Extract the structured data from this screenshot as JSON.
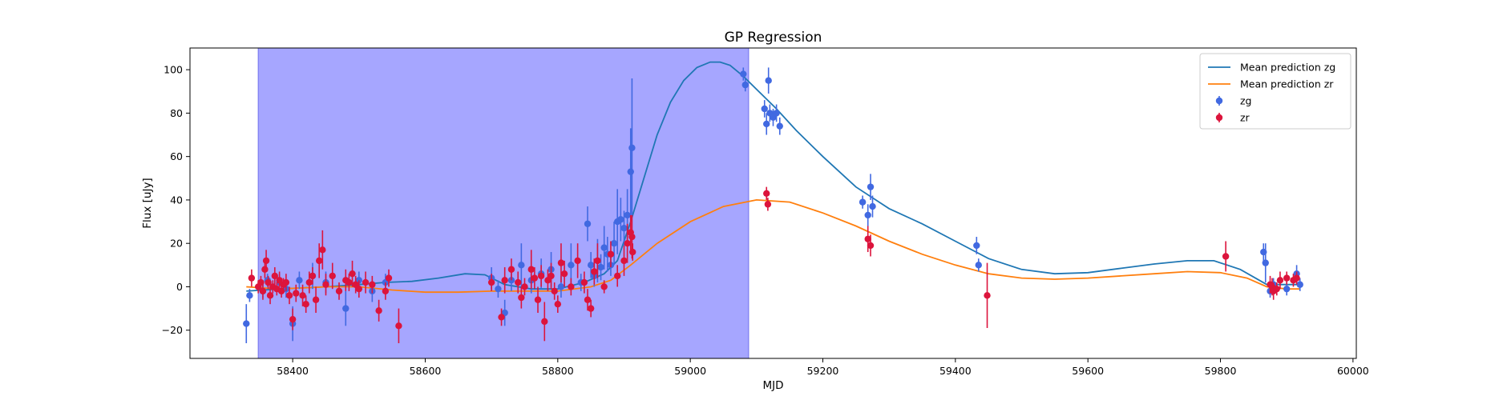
{
  "chart_data": {
    "type": "scatter",
    "title": "GP Regression",
    "xlabel": "MJD",
    "ylabel": "Flux [uJy]",
    "xlim": [
      58245,
      60005
    ],
    "ylim": [
      -33,
      110
    ],
    "x_ticks": [
      58400,
      58600,
      58800,
      59000,
      59200,
      59400,
      59600,
      59800,
      60000
    ],
    "y_ticks": [
      -20,
      0,
      20,
      40,
      60,
      80,
      100
    ],
    "grid": false,
    "legend_position": "top-right",
    "shaded_region": {
      "x_start": 58348,
      "x_end": 59088,
      "color": "#a6a6ff"
    },
    "series": [
      {
        "name": "Mean prediction zg",
        "kind": "line",
        "color": "#1f77b4",
        "x": [
          58330,
          58380,
          58450,
          58500,
          58540,
          58580,
          58620,
          58660,
          58690,
          58720,
          58760,
          58800,
          58840,
          58870,
          58890,
          58910,
          58930,
          58950,
          58970,
          58990,
          59010,
          59030,
          59045,
          59060,
          59080,
          59100,
          59130,
          59160,
          59200,
          59250,
          59300,
          59350,
          59400,
          59450,
          59500,
          59550,
          59600,
          59650,
          59700,
          59750,
          59790,
          59830,
          59870,
          59900,
          59920
        ],
        "y": [
          -2,
          -1,
          0,
          1,
          2,
          2.5,
          4,
          6,
          5.5,
          1,
          -1,
          -1,
          2,
          6,
          12,
          30,
          50,
          70,
          85,
          95,
          101,
          103.5,
          103.5,
          102,
          97,
          91,
          82,
          72,
          60,
          46,
          36,
          29,
          21,
          13,
          8,
          6,
          6.5,
          8.5,
          10.5,
          12,
          12,
          8,
          1,
          1,
          1
        ]
      },
      {
        "name": "Mean prediction zr",
        "kind": "line",
        "color": "#ff7f0e",
        "x": [
          58330,
          58380,
          58450,
          58500,
          58550,
          58600,
          58650,
          58700,
          58750,
          58800,
          58850,
          58880,
          58910,
          58950,
          59000,
          59050,
          59100,
          59150,
          59200,
          59250,
          59300,
          59350,
          59400,
          59450,
          59500,
          59550,
          59600,
          59650,
          59700,
          59750,
          59800,
          59840,
          59870,
          59900,
          59920
        ],
        "y": [
          0,
          -1,
          0,
          0,
          -1.5,
          -2.5,
          -2.5,
          -2,
          -2,
          -2,
          0,
          3,
          10,
          20,
          30,
          37,
          40,
          39,
          34,
          28,
          21,
          15,
          10,
          6,
          4,
          3.5,
          4,
          5,
          6,
          7,
          6.5,
          4,
          0,
          -1,
          -1
        ]
      },
      {
        "name": "zg",
        "kind": "errorbar",
        "color": "#4169e1",
        "x": [
          58330,
          58335,
          58355,
          58362,
          58380,
          58390,
          58400,
          58410,
          58430,
          58450,
          58480,
          58500,
          58520,
          58540,
          58700,
          58710,
          58720,
          58730,
          58745,
          58760,
          58775,
          58790,
          58805,
          58820,
          58835,
          58845,
          58850,
          58855,
          58860,
          58865,
          58870,
          58875,
          58880,
          58885,
          58890,
          58895,
          58900,
          58905,
          58910,
          58912,
          59080,
          59083,
          59112,
          59115,
          59118,
          59120,
          59125,
          59130,
          59135,
          59260,
          59268,
          59272,
          59275,
          59432,
          59435,
          59865,
          59868,
          59875,
          59880,
          59900,
          59915,
          59920
        ],
        "y": [
          -17,
          -4,
          -2,
          3,
          2,
          -1,
          -17,
          3,
          5,
          2,
          -10,
          3,
          -2,
          2,
          4,
          -1,
          -12,
          3,
          10,
          3,
          6,
          8,
          0,
          10,
          2,
          29,
          10,
          5,
          12,
          9,
          18,
          15,
          10,
          20,
          30,
          31,
          27,
          33,
          53,
          64,
          98,
          93,
          82,
          75,
          95,
          80,
          78,
          80,
          74,
          39,
          33,
          46,
          37,
          19,
          10,
          16,
          11,
          -2,
          1,
          -1,
          6,
          1
        ],
        "err": [
          9,
          3,
          3,
          3,
          4,
          4,
          8,
          4,
          6,
          5,
          8,
          4,
          5,
          4,
          5,
          4,
          6,
          5,
          10,
          6,
          7,
          8,
          5,
          10,
          4,
          8,
          6,
          5,
          10,
          6,
          10,
          8,
          5,
          10,
          15,
          10,
          8,
          12,
          20,
          32,
          3,
          3,
          4,
          5,
          6,
          4,
          4,
          4,
          4,
          3,
          5,
          6,
          5,
          4,
          3,
          4,
          9,
          3,
          3,
          3,
          4,
          3
        ]
      },
      {
        "name": "zr",
        "kind": "errorbar",
        "color": "#dc143c",
        "x": [
          58338,
          58348,
          58352,
          58355,
          58358,
          58360,
          58363,
          58366,
          58370,
          58373,
          58376,
          58380,
          58383,
          58386,
          58390,
          58395,
          58400,
          58405,
          58415,
          58420,
          58425,
          58430,
          58435,
          58440,
          58445,
          58450,
          58460,
          58470,
          58480,
          58485,
          58490,
          58495,
          58500,
          58510,
          58520,
          58530,
          58540,
          58545,
          58560,
          58700,
          58715,
          58720,
          58730,
          58740,
          58745,
          58750,
          58760,
          58765,
          58770,
          58775,
          58780,
          58785,
          58790,
          58795,
          58800,
          58805,
          58810,
          58820,
          58830,
          58840,
          58845,
          58850,
          58855,
          58860,
          58870,
          58880,
          58890,
          58900,
          58905,
          58910,
          58912,
          58913,
          59115,
          59117,
          59268,
          59272,
          59448,
          59808,
          59875,
          59878,
          59880,
          59885,
          59890,
          59900,
          59910,
          59915
        ],
        "y": [
          4,
          0,
          2,
          -2,
          8,
          12,
          2,
          -4,
          0,
          5,
          -1,
          3,
          -2,
          1,
          2,
          -4,
          -15,
          -3,
          -4,
          -8,
          2,
          5,
          -6,
          12,
          17,
          1,
          5,
          -2,
          3,
          2,
          6,
          1,
          -1,
          2,
          1,
          -11,
          -2,
          4,
          -18,
          2,
          -14,
          3,
          8,
          2,
          -5,
          0,
          8,
          4,
          -6,
          5,
          -16,
          3,
          5,
          -2,
          -8,
          11,
          6,
          0,
          12,
          2,
          -6,
          -10,
          7,
          12,
          0,
          15,
          5,
          12,
          20,
          25,
          23,
          16,
          43,
          38,
          22,
          19,
          -4,
          14,
          1,
          0,
          -2,
          -1,
          3,
          4,
          3,
          4
        ],
        "err": [
          4,
          3,
          3,
          4,
          4,
          5,
          3,
          4,
          3,
          4,
          3,
          4,
          3,
          3,
          4,
          4,
          5,
          4,
          5,
          4,
          5,
          4,
          6,
          8,
          9,
          5,
          6,
          4,
          5,
          4,
          6,
          4,
          4,
          5,
          4,
          5,
          4,
          4,
          8,
          4,
          4,
          6,
          5,
          5,
          5,
          4,
          9,
          5,
          6,
          5,
          9,
          5,
          6,
          4,
          4,
          9,
          6,
          4,
          8,
          5,
          5,
          4,
          6,
          8,
          3,
          6,
          5,
          7,
          9,
          8,
          10,
          4,
          3,
          3,
          6,
          5,
          15,
          7,
          4,
          4,
          4,
          3,
          4,
          3,
          3,
          3
        ]
      }
    ]
  }
}
